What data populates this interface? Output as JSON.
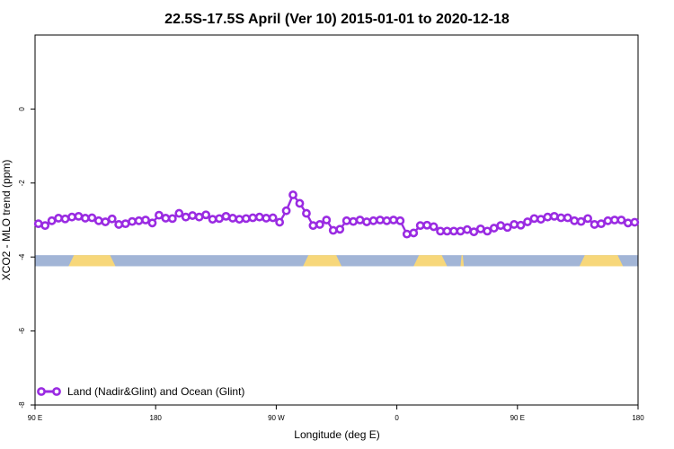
{
  "chart_data": {
    "type": "line",
    "title": "22.5S-17.5S April (Ver 10)   2015-01-01 to 2020-12-18",
    "xlabel": "Longitude (deg E)",
    "ylabel": "XCO2 - MLO trend (ppm)",
    "xlim": [
      90,
      450
    ],
    "ylim": [
      -8,
      2
    ],
    "x_ticks": [
      {
        "value": 90,
        "label": "90 E"
      },
      {
        "value": 162,
        "label": "180"
      },
      {
        "value": 234,
        "label": "90 W"
      },
      {
        "value": 306,
        "label": "0"
      },
      {
        "value": 378,
        "label": "90 E"
      },
      {
        "value": 450,
        "label": "180"
      }
    ],
    "y_ticks": [
      {
        "value": 0,
        "label": "0"
      },
      {
        "value": -2,
        "label": "-2"
      },
      {
        "value": -4,
        "label": "-4"
      },
      {
        "value": -6,
        "label": "-6"
      },
      {
        "value": -8,
        "label": "-8"
      }
    ],
    "legend": {
      "position": "bottom-left"
    },
    "series": [
      {
        "name": "Land (Nadir&Glint) and Ocean (Glint)",
        "color": "#9a2be2",
        "x": [
          92,
          96,
          100,
          104,
          108,
          112,
          116,
          120,
          124,
          128,
          132,
          136,
          140,
          144,
          148,
          152,
          156,
          160,
          164,
          168,
          172,
          176,
          180,
          184,
          188,
          192,
          196,
          200,
          204,
          208,
          212,
          216,
          220,
          224,
          228,
          232,
          236,
          240,
          244,
          248,
          252,
          256,
          260,
          264,
          268,
          272,
          276,
          280,
          284,
          288,
          292,
          296,
          300,
          304,
          308,
          312,
          316,
          320,
          324,
          328,
          332,
          336,
          340,
          344,
          348,
          352,
          356,
          360,
          364,
          368,
          372,
          376,
          380,
          384,
          388,
          392,
          396,
          400,
          404,
          408,
          412,
          416,
          420,
          424,
          428,
          432,
          436,
          440,
          444,
          448
        ],
        "y": [
          -3.1,
          -3.15,
          -3.02,
          -2.95,
          -2.97,
          -2.92,
          -2.9,
          -2.95,
          -2.94,
          -3.02,
          -3.05,
          -2.97,
          -3.12,
          -3.1,
          -3.04,
          -3.02,
          -3.0,
          -3.08,
          -2.87,
          -2.95,
          -2.96,
          -2.82,
          -2.92,
          -2.88,
          -2.92,
          -2.86,
          -2.98,
          -2.96,
          -2.9,
          -2.95,
          -2.98,
          -2.96,
          -2.94,
          -2.92,
          -2.95,
          -2.94,
          -3.06,
          -2.75,
          -2.32,
          -2.55,
          -2.82,
          -3.15,
          -3.12,
          -3.0,
          -3.28,
          -3.25,
          -3.02,
          -3.04,
          -3.0,
          -3.05,
          -3.02,
          -3.0,
          -3.02,
          -3.0,
          -3.02,
          -3.38,
          -3.35,
          -3.15,
          -3.14,
          -3.18,
          -3.3,
          -3.3,
          -3.3,
          -3.3,
          -3.26,
          -3.32,
          -3.24,
          -3.3,
          -3.22,
          -3.15,
          -3.2,
          -3.12,
          -3.14,
          -3.05,
          -2.96,
          -2.98,
          -2.92,
          -2.9,
          -2.94,
          -2.94,
          -3.02,
          -3.04,
          -2.96,
          -3.12,
          -3.1,
          -3.02,
          -3.0,
          -3.0,
          -3.08,
          -3.06
        ]
      }
    ],
    "surface_band": {
      "y_range": [
        -4.25,
        -3.95
      ],
      "ocean_color": "#a2b5d6",
      "land_color": "#f7d77a",
      "land_segments": [
        [
          110,
          138
        ],
        [
          250,
          273
        ],
        [
          316,
          336
        ],
        [
          344,
          346
        ],
        [
          415,
          441
        ]
      ]
    }
  }
}
